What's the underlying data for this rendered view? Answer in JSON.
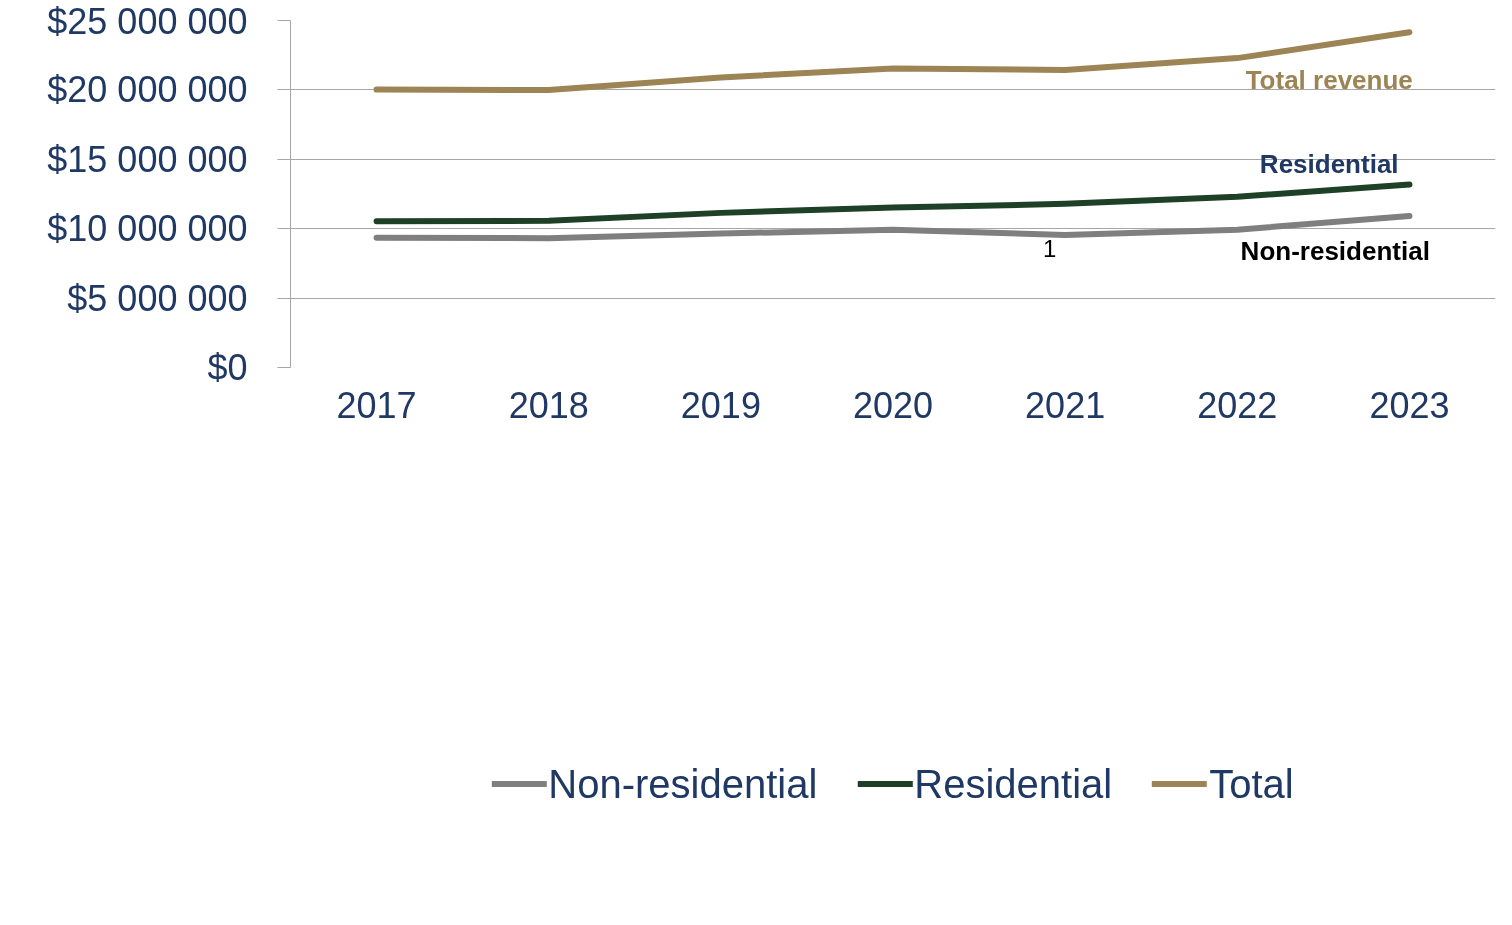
{
  "chart_data": {
    "type": "line",
    "x": [
      2017,
      2018,
      2019,
      2020,
      2021,
      2022,
      2023
    ],
    "xlim": [
      2016.5,
      2023.5
    ],
    "xticks": [
      2017,
      2018,
      2019,
      2020,
      2021,
      2022,
      2023
    ],
    "ylim": [
      0,
      25000000
    ],
    "yticks": [
      {
        "value": 0,
        "label": "$0"
      },
      {
        "value": 5000000,
        "label": "$5 000 000"
      },
      {
        "value": 10000000,
        "label": "$10 000 000"
      },
      {
        "value": 15000000,
        "label": "$15 000 000"
      },
      {
        "value": 20000000,
        "label": "$20 000 000"
      },
      {
        "value": 25000000,
        "label": "$25 000 000"
      }
    ],
    "series": [
      {
        "name": "Non-residential",
        "color": "#7f7f7f",
        "values": [
          9350000,
          9320000,
          9650000,
          9930000,
          9550000,
          9930000,
          10910000
        ]
      },
      {
        "name": "Residential",
        "color": "#1e4027",
        "values": [
          10540000,
          10570000,
          11140000,
          11520000,
          11790000,
          12300000,
          13180000
        ]
      },
      {
        "name": "Total",
        "color": "#9c8455",
        "values": [
          20020000,
          19990000,
          20900000,
          21540000,
          21440000,
          22290000,
          24150000
        ]
      }
    ],
    "annotations": [
      "Total revenue",
      "Residential",
      "Non-residential",
      "1"
    ],
    "grid": "y",
    "legend": "bottom",
    "line_style": "solid"
  }
}
